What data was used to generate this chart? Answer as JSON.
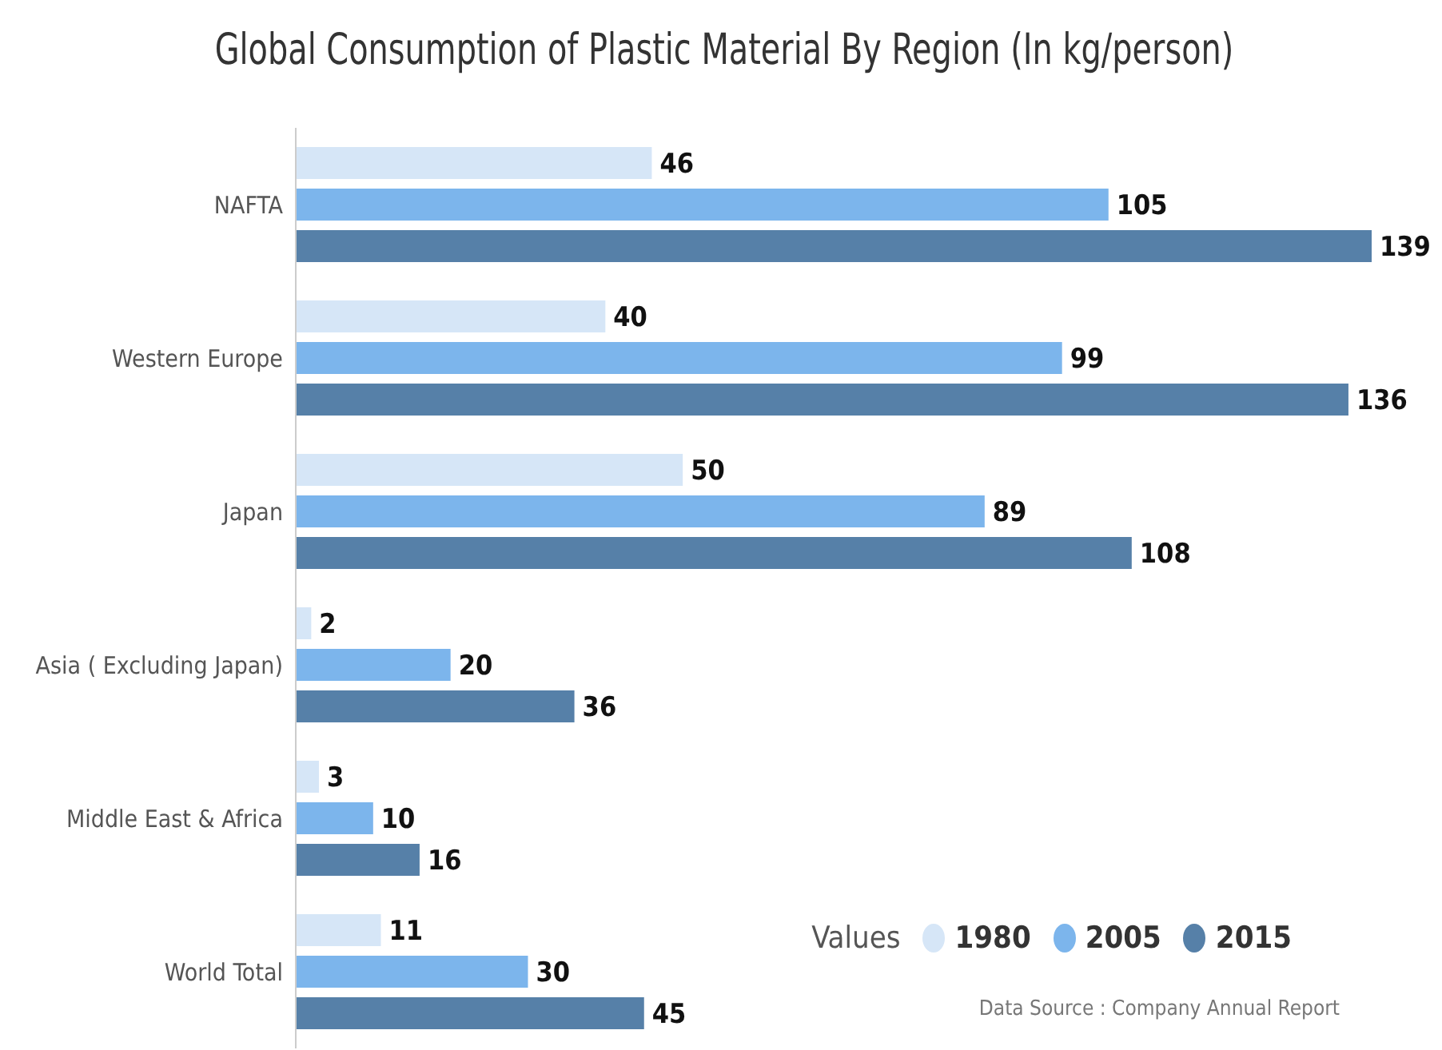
{
  "chart_data": {
    "type": "bar",
    "orientation": "horizontal",
    "title": "Global Consumption of Plastic Material By Region (In kg/person)",
    "categories": [
      "NAFTA",
      "Western Europe",
      "Japan",
      "Asia ( Excluding Japan)",
      "Middle East & Africa",
      "World Total"
    ],
    "series": [
      {
        "name": "1980",
        "color": "#d6e6f7",
        "values": [
          46,
          40,
          50,
          2,
          3,
          11
        ]
      },
      {
        "name": "2005",
        "color": "#7cb5ec",
        "values": [
          105,
          99,
          89,
          20,
          10,
          30
        ]
      },
      {
        "name": "2015",
        "color": "#5680a8",
        "values": [
          139,
          136,
          108,
          36,
          16,
          45
        ]
      }
    ],
    "data_labels": true,
    "legend": "bottom right",
    "legend_title": "Values",
    "annotations": [
      "Data Source : Company Annual Report"
    ]
  }
}
